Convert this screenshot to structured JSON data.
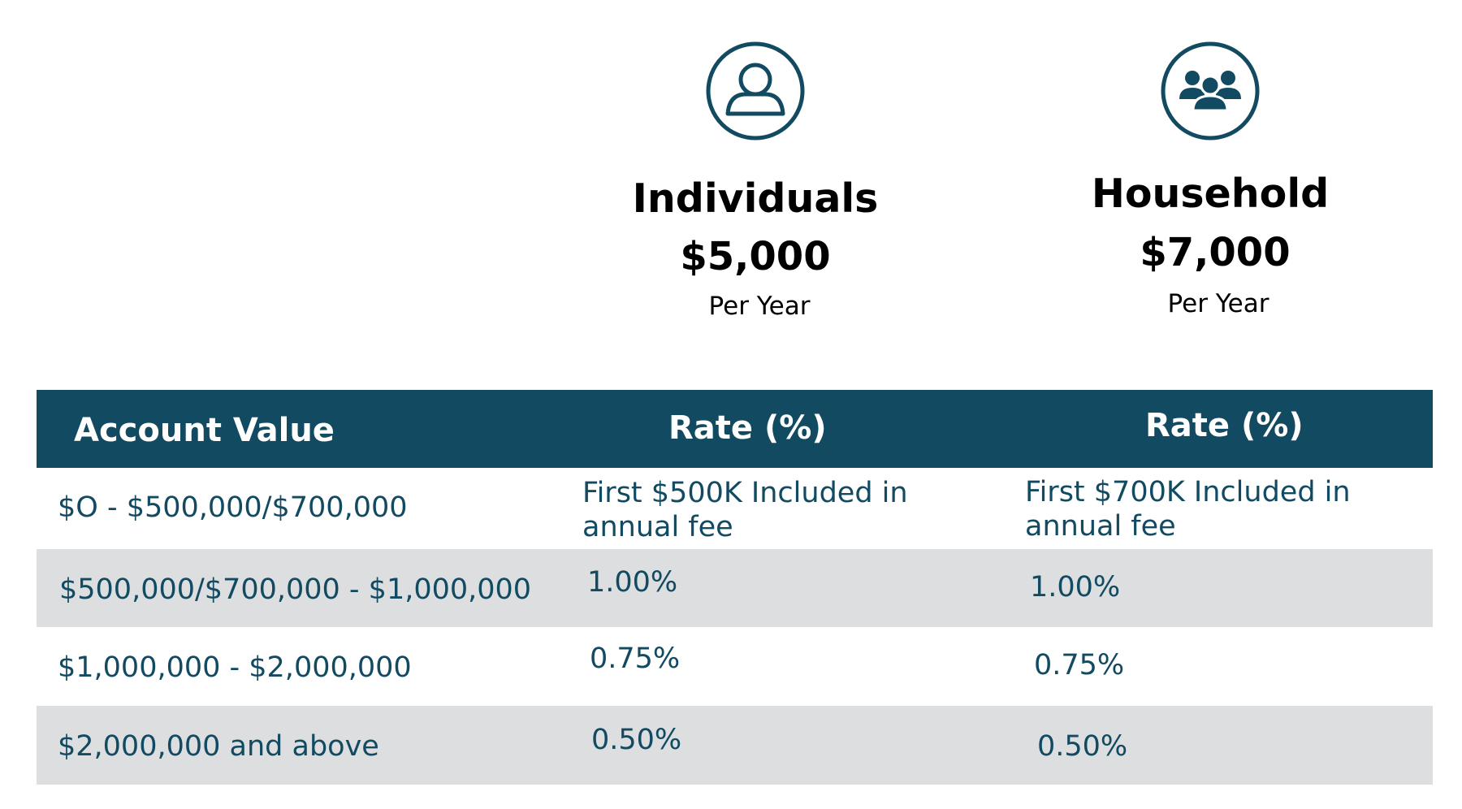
{
  "plans": {
    "individuals": {
      "icon": "user-icon",
      "title": "Individuals",
      "price": "$5,000",
      "period": "Per Year"
    },
    "household": {
      "icon": "group-icon",
      "title": "Household",
      "price": "$7,000",
      "period": "Per Year"
    }
  },
  "table": {
    "headers": [
      "Account Value",
      "Rate (%)",
      "Rate (%)"
    ],
    "rows": [
      {
        "value": "$O - $500,000/$700,000",
        "rate_individual": "First $500K Included in annual fee",
        "rate_household": "First $700K Included in annual fee"
      },
      {
        "value": "$500,000/$700,000 - $1,000,000",
        "rate_individual": "1.00%",
        "rate_household": "1.00%"
      },
      {
        "value": "$1,000,000 - $2,000,000",
        "rate_individual": "0.75%",
        "rate_household": "0.75%"
      },
      {
        "value": "$2,000,000 and above",
        "rate_individual": "0.50%",
        "rate_household": "0.50%"
      }
    ]
  },
  "colors": {
    "brand": "#124a62",
    "row_shade": "#dcdedf",
    "text_dark": "#000000"
  }
}
